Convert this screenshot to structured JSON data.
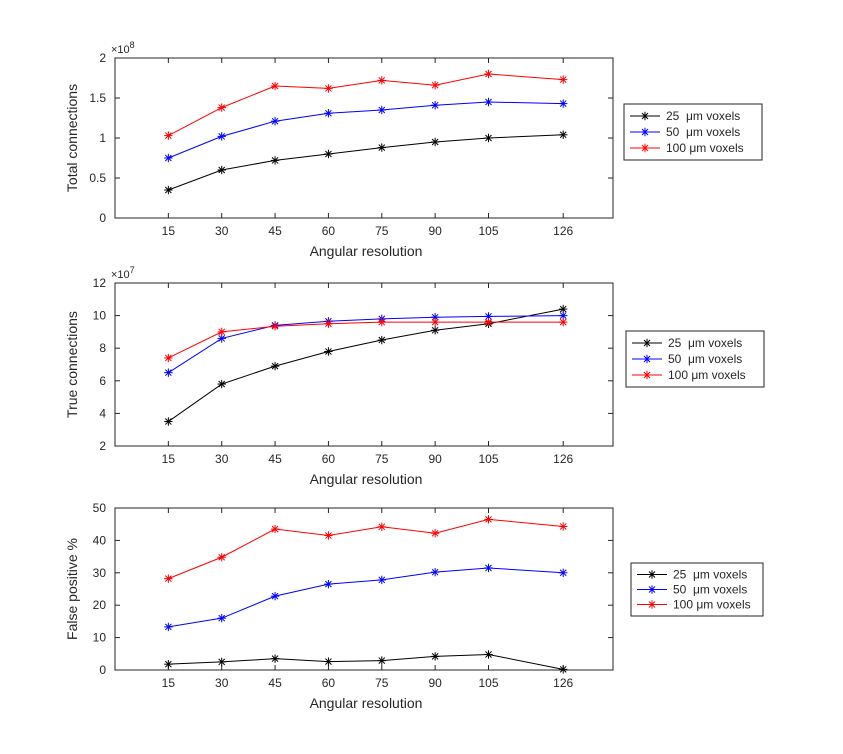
{
  "chart_data": [
    {
      "type": "line",
      "id": "total",
      "xlabel": "Angular resolution",
      "ylabel": "Total connections",
      "exponent_label": "×10",
      "exponent_power": "8",
      "x": [
        15,
        30,
        45,
        60,
        75,
        90,
        105,
        126
      ],
      "xticks": [
        "15",
        "30",
        "45",
        "60",
        "75",
        "90",
        "105",
        "126"
      ],
      "xlim": [
        0,
        140
      ],
      "ylim": [
        0,
        2
      ],
      "yticks": [
        "0",
        "0.5",
        "1",
        "1.5",
        "2"
      ],
      "ytick_values": [
        0,
        0.5,
        1,
        1.5,
        2
      ],
      "series": [
        {
          "name": "25  μm voxels",
          "color": "#000000",
          "values": [
            0.35,
            0.6,
            0.72,
            0.8,
            0.88,
            0.95,
            1.0,
            1.04
          ]
        },
        {
          "name": "50  μm voxels",
          "color": "#0000ff",
          "values": [
            0.75,
            1.02,
            1.21,
            1.31,
            1.35,
            1.41,
            1.45,
            1.43
          ]
        },
        {
          "name": "100 μm voxels",
          "color": "#ff0000",
          "values": [
            1.03,
            1.38,
            1.65,
            1.62,
            1.72,
            1.66,
            1.8,
            1.73
          ]
        }
      ],
      "legend": "outside-right"
    },
    {
      "type": "line",
      "id": "true",
      "xlabel": "Angular resolution",
      "ylabel": "True connections",
      "exponent_label": "×10",
      "exponent_power": "7",
      "x": [
        15,
        30,
        45,
        60,
        75,
        90,
        105,
        126
      ],
      "xticks": [
        "15",
        "30",
        "45",
        "60",
        "75",
        "90",
        "105",
        "126"
      ],
      "xlim": [
        0,
        140
      ],
      "ylim": [
        2,
        12
      ],
      "yticks": [
        "2",
        "4",
        "6",
        "8",
        "10",
        "12"
      ],
      "ytick_values": [
        2,
        4,
        6,
        8,
        10,
        12
      ],
      "series": [
        {
          "name": "25  μm voxels",
          "color": "#000000",
          "values": [
            3.5,
            5.8,
            6.9,
            7.8,
            8.5,
            9.1,
            9.5,
            10.4
          ]
        },
        {
          "name": "50  μm voxels",
          "color": "#0000ff",
          "values": [
            6.5,
            8.6,
            9.4,
            9.65,
            9.8,
            9.9,
            9.95,
            10.0
          ]
        },
        {
          "name": "100 μm voxels",
          "color": "#ff0000",
          "values": [
            7.4,
            9.0,
            9.35,
            9.5,
            9.6,
            9.6,
            9.6,
            9.6
          ]
        }
      ],
      "legend": "outside-right"
    },
    {
      "type": "line",
      "id": "fp",
      "xlabel": "Angular resolution",
      "ylabel": "False positive %",
      "x": [
        15,
        30,
        45,
        60,
        75,
        90,
        105,
        126
      ],
      "xticks": [
        "15",
        "30",
        "45",
        "60",
        "75",
        "90",
        "105",
        "126"
      ],
      "xlim": [
        0,
        140
      ],
      "ylim": [
        0,
        50
      ],
      "yticks": [
        "0",
        "10",
        "20",
        "30",
        "40",
        "50"
      ],
      "ytick_values": [
        0,
        10,
        20,
        30,
        40,
        50
      ],
      "series": [
        {
          "name": "25  μm voxels",
          "color": "#000000",
          "values": [
            1.8,
            2.5,
            3.5,
            2.6,
            2.9,
            4.2,
            4.8,
            0.2
          ]
        },
        {
          "name": "50  μm voxels",
          "color": "#0000ff",
          "values": [
            13.3,
            16.0,
            22.8,
            26.5,
            27.8,
            30.2,
            31.5,
            30.0
          ]
        },
        {
          "name": "100 μm voxels",
          "color": "#ff0000",
          "values": [
            28.2,
            34.8,
            43.5,
            41.5,
            44.2,
            42.2,
            46.5,
            44.3
          ]
        }
      ],
      "legend": "outside-right"
    }
  ]
}
